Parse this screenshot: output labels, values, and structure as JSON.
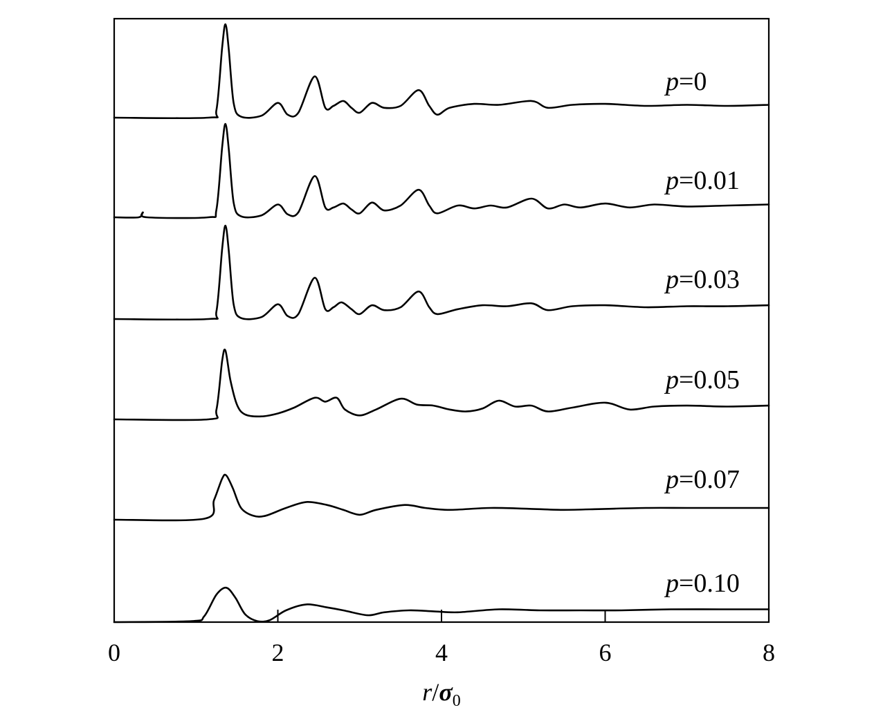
{
  "chart_data": {
    "type": "line",
    "title": "",
    "xlabel": {
      "var": "r",
      "slash": "/",
      "sym": "σ",
      "sub": "0"
    },
    "ylabel": "",
    "xlim": [
      0,
      8
    ],
    "x_ticks": [
      "0",
      "2",
      "4",
      "6",
      "8"
    ],
    "legend": "inline-right",
    "grid": false,
    "layout_note": "curves stacked vertically with offsets, no y-axis scale",
    "series": [
      {
        "name": "p=0",
        "label_var": "p",
        "label_val": "=0",
        "points": [
          [
            0,
            0
          ],
          [
            1.15,
            0
          ],
          [
            1.25,
            0.08
          ],
          [
            1.32,
            0.72
          ],
          [
            1.36,
            0.95
          ],
          [
            1.4,
            0.7
          ],
          [
            1.46,
            0.15
          ],
          [
            1.55,
            0.01
          ],
          [
            1.8,
            0.02
          ],
          [
            2.0,
            0.15
          ],
          [
            2.12,
            0.03
          ],
          [
            2.25,
            0.05
          ],
          [
            2.45,
            0.42
          ],
          [
            2.58,
            0.1
          ],
          [
            2.68,
            0.12
          ],
          [
            2.8,
            0.17
          ],
          [
            2.9,
            0.1
          ],
          [
            3.0,
            0.05
          ],
          [
            3.15,
            0.15
          ],
          [
            3.3,
            0.1
          ],
          [
            3.5,
            0.12
          ],
          [
            3.72,
            0.28
          ],
          [
            3.85,
            0.12
          ],
          [
            3.95,
            0.03
          ],
          [
            4.1,
            0.1
          ],
          [
            4.4,
            0.14
          ],
          [
            4.7,
            0.13
          ],
          [
            5.1,
            0.17
          ],
          [
            5.3,
            0.1
          ],
          [
            5.6,
            0.13
          ],
          [
            6.0,
            0.14
          ],
          [
            6.5,
            0.12
          ],
          [
            7.0,
            0.13
          ],
          [
            7.5,
            0.12
          ],
          [
            8.0,
            0.13
          ]
        ]
      },
      {
        "name": "p=0.01",
        "label_var": "p",
        "label_val": "=0.01",
        "points": [
          [
            0,
            0
          ],
          [
            0.3,
            0
          ],
          [
            0.35,
            0.05
          ],
          [
            0.4,
            0
          ],
          [
            1.15,
            0
          ],
          [
            1.25,
            0.08
          ],
          [
            1.32,
            0.72
          ],
          [
            1.36,
            0.95
          ],
          [
            1.4,
            0.7
          ],
          [
            1.46,
            0.15
          ],
          [
            1.55,
            0.01
          ],
          [
            1.8,
            0.02
          ],
          [
            2.0,
            0.13
          ],
          [
            2.12,
            0.03
          ],
          [
            2.25,
            0.05
          ],
          [
            2.45,
            0.42
          ],
          [
            2.58,
            0.1
          ],
          [
            2.68,
            0.1
          ],
          [
            2.8,
            0.14
          ],
          [
            2.9,
            0.08
          ],
          [
            3.0,
            0.04
          ],
          [
            3.15,
            0.15
          ],
          [
            3.3,
            0.07
          ],
          [
            3.5,
            0.12
          ],
          [
            3.72,
            0.28
          ],
          [
            3.85,
            0.12
          ],
          [
            3.95,
            0.04
          ],
          [
            4.2,
            0.12
          ],
          [
            4.4,
            0.09
          ],
          [
            4.6,
            0.12
          ],
          [
            4.8,
            0.1
          ],
          [
            5.1,
            0.19
          ],
          [
            5.3,
            0.09
          ],
          [
            5.5,
            0.13
          ],
          [
            5.7,
            0.1
          ],
          [
            6.0,
            0.14
          ],
          [
            6.3,
            0.1
          ],
          [
            6.6,
            0.13
          ],
          [
            7.0,
            0.11
          ],
          [
            7.5,
            0.12
          ],
          [
            8.0,
            0.13
          ]
        ]
      },
      {
        "name": "p=0.03",
        "label_var": "p",
        "label_val": "=0.03",
        "points": [
          [
            0,
            0
          ],
          [
            1.15,
            0
          ],
          [
            1.25,
            0.08
          ],
          [
            1.32,
            0.72
          ],
          [
            1.36,
            0.95
          ],
          [
            1.4,
            0.7
          ],
          [
            1.46,
            0.15
          ],
          [
            1.55,
            0.01
          ],
          [
            1.8,
            0.02
          ],
          [
            2.0,
            0.15
          ],
          [
            2.12,
            0.03
          ],
          [
            2.25,
            0.05
          ],
          [
            2.45,
            0.42
          ],
          [
            2.58,
            0.1
          ],
          [
            2.68,
            0.12
          ],
          [
            2.78,
            0.17
          ],
          [
            2.9,
            0.1
          ],
          [
            3.0,
            0.05
          ],
          [
            3.15,
            0.14
          ],
          [
            3.3,
            0.09
          ],
          [
            3.5,
            0.12
          ],
          [
            3.72,
            0.28
          ],
          [
            3.85,
            0.12
          ],
          [
            3.95,
            0.05
          ],
          [
            4.2,
            0.1
          ],
          [
            4.5,
            0.14
          ],
          [
            4.8,
            0.13
          ],
          [
            5.1,
            0.16
          ],
          [
            5.3,
            0.09
          ],
          [
            5.6,
            0.13
          ],
          [
            6.0,
            0.14
          ],
          [
            6.5,
            0.12
          ],
          [
            7.0,
            0.13
          ],
          [
            7.5,
            0.13
          ],
          [
            8.0,
            0.14
          ]
        ]
      },
      {
        "name": "p=0.05",
        "label_var": "p",
        "label_val": "=0.05",
        "points": [
          [
            0,
            0
          ],
          [
            1.15,
            0
          ],
          [
            1.25,
            0.1
          ],
          [
            1.32,
            0.6
          ],
          [
            1.36,
            0.7
          ],
          [
            1.42,
            0.4
          ],
          [
            1.5,
            0.15
          ],
          [
            1.6,
            0.05
          ],
          [
            1.8,
            0.03
          ],
          [
            2.0,
            0.06
          ],
          [
            2.2,
            0.12
          ],
          [
            2.45,
            0.22
          ],
          [
            2.58,
            0.18
          ],
          [
            2.72,
            0.22
          ],
          [
            2.82,
            0.1
          ],
          [
            3.0,
            0.04
          ],
          [
            3.2,
            0.1
          ],
          [
            3.5,
            0.21
          ],
          [
            3.7,
            0.15
          ],
          [
            3.9,
            0.14
          ],
          [
            4.1,
            0.1
          ],
          [
            4.3,
            0.08
          ],
          [
            4.5,
            0.11
          ],
          [
            4.7,
            0.19
          ],
          [
            4.9,
            0.13
          ],
          [
            5.1,
            0.14
          ],
          [
            5.3,
            0.08
          ],
          [
            5.6,
            0.12
          ],
          [
            6.0,
            0.17
          ],
          [
            6.3,
            0.1
          ],
          [
            6.6,
            0.13
          ],
          [
            7.0,
            0.14
          ],
          [
            7.5,
            0.13
          ],
          [
            8.0,
            0.14
          ]
        ]
      },
      {
        "name": "p=0.07",
        "label_var": "p",
        "label_val": "=0.07",
        "points": [
          [
            0,
            0
          ],
          [
            1.1,
            0.01
          ],
          [
            1.22,
            0.2
          ],
          [
            1.32,
            0.42
          ],
          [
            1.37,
            0.45
          ],
          [
            1.45,
            0.32
          ],
          [
            1.55,
            0.12
          ],
          [
            1.7,
            0.04
          ],
          [
            1.85,
            0.04
          ],
          [
            2.1,
            0.12
          ],
          [
            2.35,
            0.18
          ],
          [
            2.6,
            0.15
          ],
          [
            2.8,
            0.1
          ],
          [
            3.0,
            0.05
          ],
          [
            3.2,
            0.1
          ],
          [
            3.55,
            0.15
          ],
          [
            3.8,
            0.12
          ],
          [
            4.1,
            0.1
          ],
          [
            4.6,
            0.12
          ],
          [
            5.1,
            0.11
          ],
          [
            5.5,
            0.1
          ],
          [
            6.0,
            0.11
          ],
          [
            6.5,
            0.12
          ],
          [
            7.0,
            0.12
          ],
          [
            7.5,
            0.12
          ],
          [
            8.0,
            0.12
          ]
        ]
      },
      {
        "name": "p=0.10",
        "label_var": "p",
        "label_val": "=0.10",
        "points": [
          [
            0,
            0
          ],
          [
            0.95,
            0.01
          ],
          [
            1.1,
            0.06
          ],
          [
            1.25,
            0.28
          ],
          [
            1.37,
            0.35
          ],
          [
            1.48,
            0.25
          ],
          [
            1.6,
            0.08
          ],
          [
            1.75,
            0.01
          ],
          [
            1.9,
            0.02
          ],
          [
            2.1,
            0.12
          ],
          [
            2.35,
            0.18
          ],
          [
            2.6,
            0.15
          ],
          [
            2.8,
            0.12
          ],
          [
            3.1,
            0.07
          ],
          [
            3.3,
            0.1
          ],
          [
            3.6,
            0.12
          ],
          [
            3.9,
            0.11
          ],
          [
            4.2,
            0.1
          ],
          [
            4.7,
            0.13
          ],
          [
            5.2,
            0.12
          ],
          [
            5.7,
            0.12
          ],
          [
            6.2,
            0.12
          ],
          [
            6.8,
            0.13
          ],
          [
            7.4,
            0.13
          ],
          [
            8.0,
            0.13
          ]
        ]
      }
    ]
  }
}
